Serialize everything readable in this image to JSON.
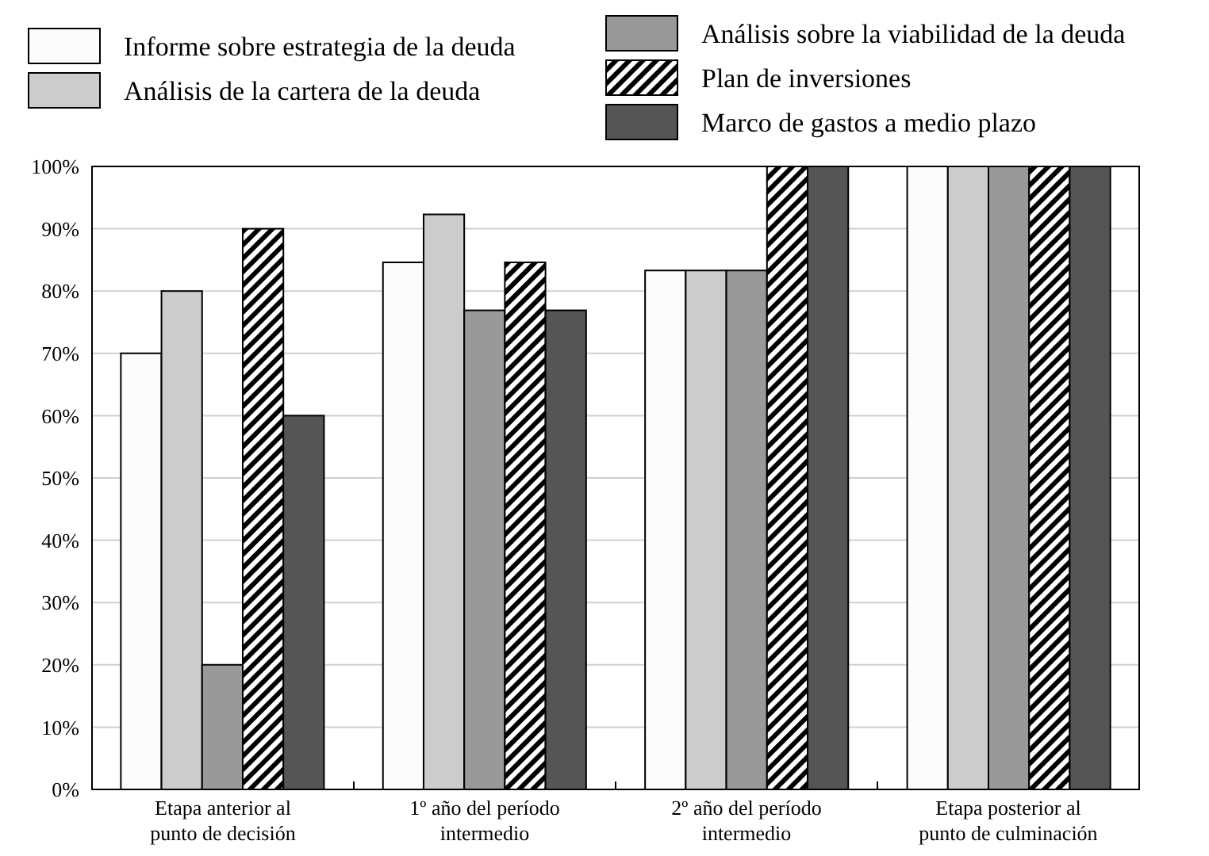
{
  "chart_data": {
    "type": "bar",
    "categories": [
      "Etapa anterior al punto de decisión",
      "1º año del período intermedio",
      "2º año del período intermedio",
      "Etapa posterior al punto de culminación"
    ],
    "series": [
      {
        "name": "Informe sobre estrategia de la deuda",
        "color": "#fcfcfc",
        "values": [
          70,
          84.6,
          83.3,
          100
        ]
      },
      {
        "name": "Análisis de la cartera de la deuda",
        "color": "#cccccc",
        "values": [
          80,
          92.3,
          83.3,
          100
        ]
      },
      {
        "name": "Análisis sobre la viabilidad de la deuda",
        "color": "#999999",
        "values": [
          20,
          76.9,
          83.3,
          100
        ]
      },
      {
        "name": "Plan de inversiones",
        "color": "#000000",
        "values": [
          90,
          84.6,
          100,
          100
        ]
      },
      {
        "name": "Marco de gastos a medio plazo",
        "color": "#555555",
        "values": [
          60,
          76.9,
          100,
          100
        ]
      }
    ],
    "ylim": [
      0,
      100
    ],
    "yticks": [
      {
        "value": 0,
        "label": "0%"
      },
      {
        "value": 10,
        "label": "10%"
      },
      {
        "value": 20,
        "label": "20%"
      },
      {
        "value": 30,
        "label": "30%"
      },
      {
        "value": 40,
        "label": "40%"
      },
      {
        "value": 50,
        "label": "50%"
      },
      {
        "value": 60,
        "label": "60%"
      },
      {
        "value": 70,
        "label": "70%"
      },
      {
        "value": 80,
        "label": "80%"
      },
      {
        "value": 90,
        "label": "90%"
      },
      {
        "value": 100,
        "label": "100%"
      }
    ],
    "grid": "y",
    "legend": "top"
  }
}
